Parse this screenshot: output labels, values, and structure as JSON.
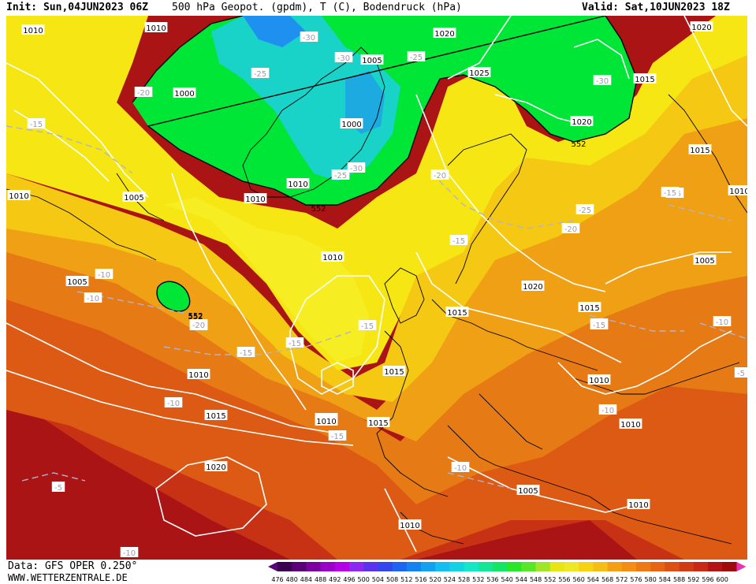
{
  "header": {
    "init": "Init: Sun,04JUN2023 06Z",
    "title": "500 hPa Geopot. (gpdm), T (C), Bodendruck (hPa)",
    "valid": "Valid: Sat,10JUN2023 18Z"
  },
  "footer": {
    "source": "Data: GFS OPER 0.250°",
    "website": "WWW.WETTERZENTRALE.DE"
  },
  "legend": {
    "values": [
      "476",
      "480",
      "484",
      "488",
      "492",
      "496",
      "500",
      "504",
      "508",
      "512",
      "516",
      "520",
      "524",
      "528",
      "532",
      "536",
      "540",
      "544",
      "548",
      "552",
      "556",
      "560",
      "564",
      "568",
      "572",
      "576",
      "580",
      "584",
      "588",
      "592",
      "596",
      "600"
    ],
    "colors": [
      "#3c0050",
      "#5a0078",
      "#7a00a0",
      "#9a00c8",
      "#b400e6",
      "#8c28f0",
      "#5a32f0",
      "#3246f0",
      "#1e64f0",
      "#1482f0",
      "#14a0f0",
      "#14bef0",
      "#14d2e6",
      "#14e6c8",
      "#14e696",
      "#14e664",
      "#28e628",
      "#5ae628",
      "#a0e628",
      "#e6e614",
      "#f0e628",
      "#f5d214",
      "#f5be14",
      "#f5a014",
      "#f58c14",
      "#f07814",
      "#e66414",
      "#dc5014",
      "#d23c14",
      "#c82814",
      "#b41414",
      "#a00a0a"
    ],
    "left_arrow_color": "#5a0078",
    "right_arrow_color": "#e632b4"
  },
  "map": {
    "isobar_labels": [
      "1010",
      "1010",
      "1000",
      "1010",
      "1005",
      "1000",
      "1005",
      "1010",
      "1020",
      "1025",
      "1015",
      "1020",
      "1015",
      "1010",
      "1005",
      "1005",
      "1010",
      "1010",
      "1020",
      "1015",
      "1015",
      "1010",
      "1010",
      "1015",
      "1010",
      "1015",
      "1010",
      "1020",
      "1020",
      "1005",
      "1010",
      "1010",
      "1015",
      "1010"
    ],
    "temp_labels": [
      "-30",
      "-30",
      "-25",
      "-25",
      "-20",
      "-15",
      "-25",
      "-30",
      "-20",
      "-30",
      "-25",
      "-15",
      "-15",
      "-10",
      "-20",
      "-20",
      "-15",
      "-15",
      "-15",
      "-15",
      "-10",
      "-15",
      "-10",
      "-10",
      "-10",
      "-5",
      "-10",
      "-5",
      "-10",
      "-15",
      "-20",
      "-15"
    ],
    "geopotential_labels": [
      "552",
      "552",
      "552",
      "552"
    ],
    "colors": {
      "green": "#00e636",
      "cyan": "#19d2c8",
      "blue": "#1e90f0",
      "yellow": "#f5e614",
      "light_yellow": "#f7f02a",
      "orange_yellow": "#f5c814",
      "orange": "#f0a014",
      "dark_orange": "#e67a14",
      "red_orange": "#dc5a14",
      "red": "#c83214",
      "dark_red": "#aa1414"
    }
  }
}
